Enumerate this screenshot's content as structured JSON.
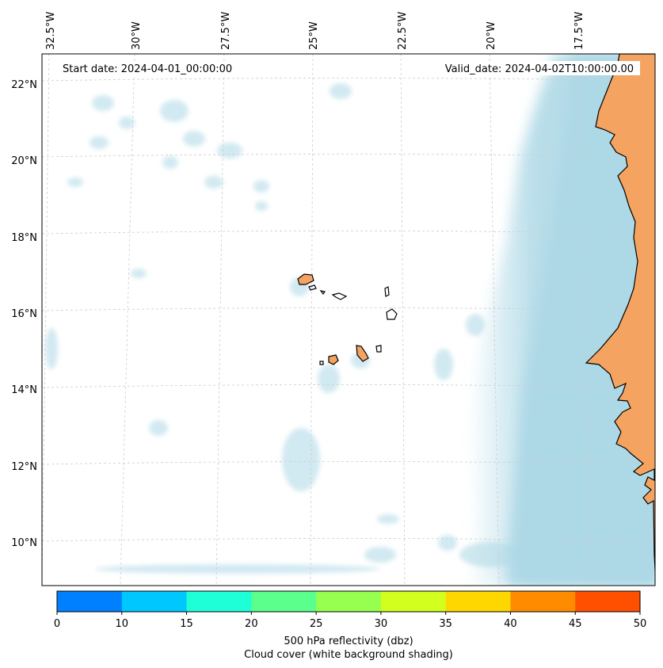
{
  "map": {
    "start_date_label": "Start date: 2024-04-01_00:00:00",
    "valid_date_label": "Valid_date: 2024-04-02T10:00:00.00",
    "lon_labels": [
      "32.5°W",
      "30°W",
      "27.5°W",
      "25°W",
      "22.5°W",
      "20°W",
      "17.5°W"
    ],
    "lat_labels": [
      "22°N",
      "20°N",
      "18°N",
      "16°N",
      "14°N",
      "12°N",
      "10°N"
    ],
    "colors": {
      "land": "#f4a460",
      "cloud": "#add8e6",
      "coast": "#000000",
      "grid": "#cccccc"
    }
  },
  "colorbar": {
    "ticks": [
      "0",
      "10",
      "15",
      "20",
      "25",
      "30",
      "35",
      "40",
      "45",
      "50"
    ],
    "colors": [
      "#0080ff",
      "#00c8ff",
      "#1effd7",
      "#5aff8c",
      "#96ff50",
      "#d2ff1e",
      "#ffd700",
      "#ff8c00",
      "#ff5000"
    ],
    "label_line1": "500 hPa reflectivity (dbz)",
    "label_line2": "Cloud cover (white background shading)"
  }
}
